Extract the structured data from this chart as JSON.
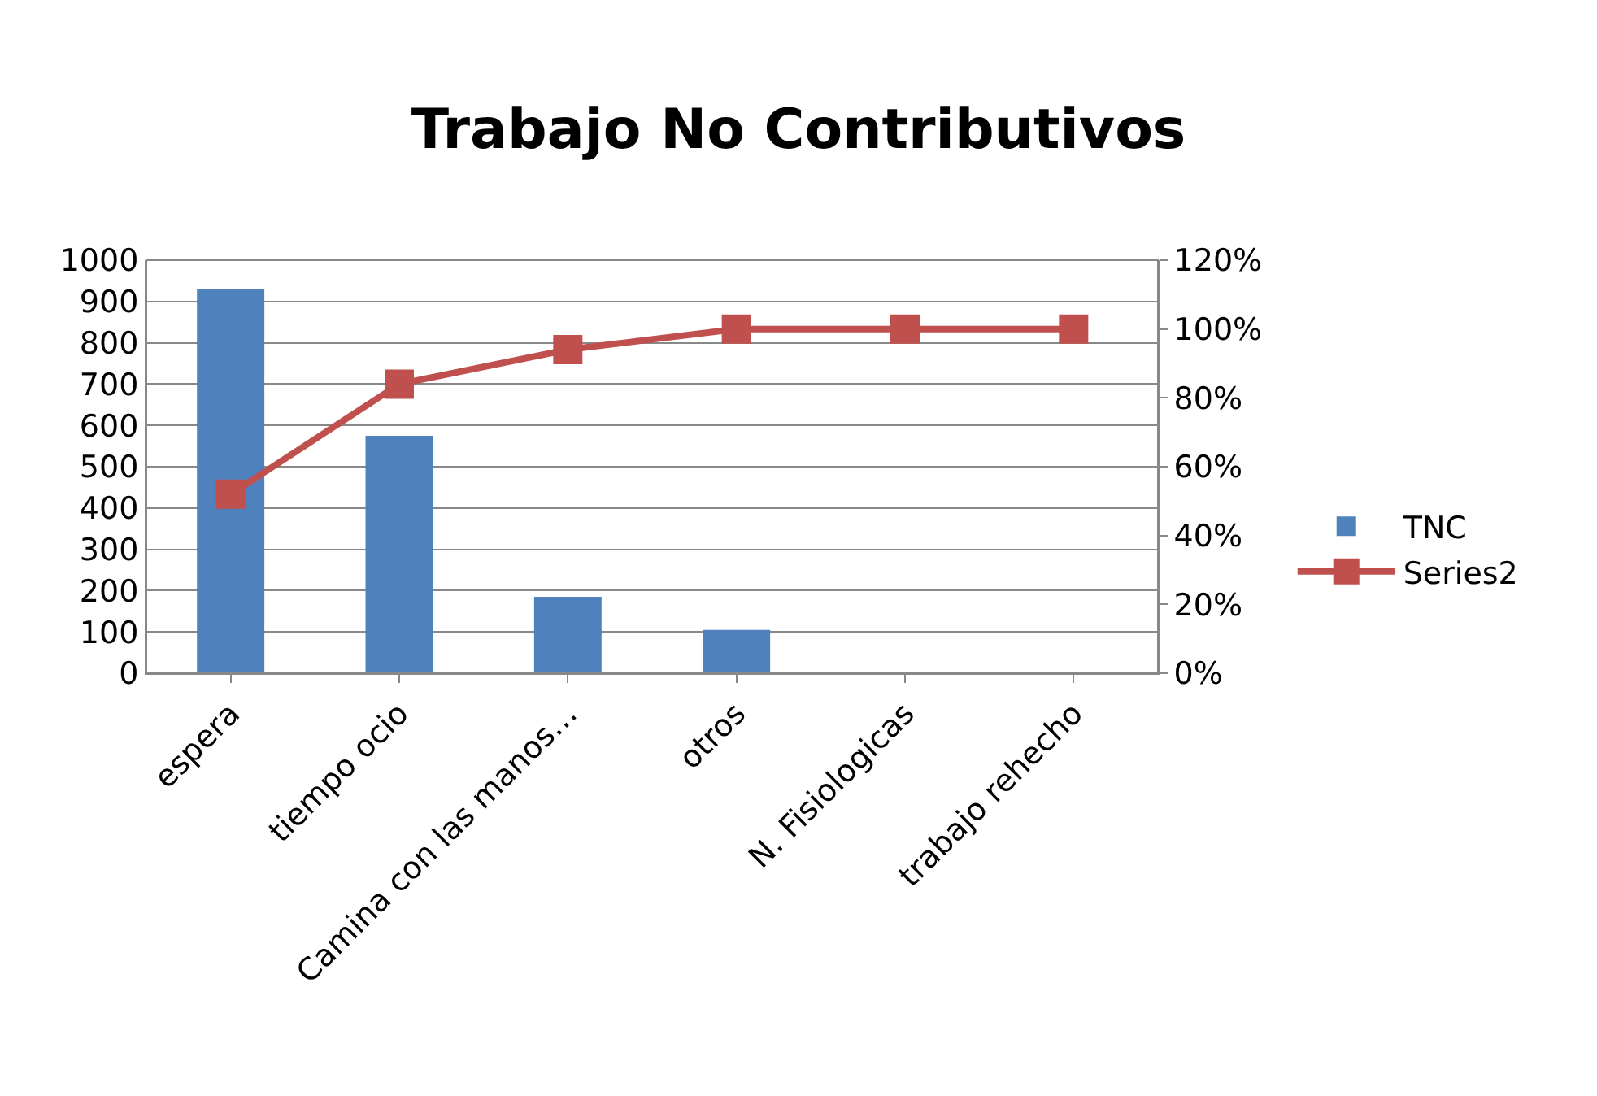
{
  "chart_data": {
    "type": "bar",
    "title": "Trabajo No Contributivos",
    "categories": [
      "espera",
      "tiempo ocio",
      "Camina con las manos…",
      "otros",
      "N. Fisiologicas",
      "trabajo rehecho"
    ],
    "series": [
      {
        "name": "TNC",
        "color": "#4f81bd",
        "values": [
          930,
          575,
          185,
          105,
          0,
          0
        ]
      },
      {
        "name": "Series2",
        "type": "line",
        "axis": "y2",
        "color": "#c0504d",
        "marker": "square",
        "values": [
          52,
          84,
          94,
          100,
          100,
          100
        ]
      }
    ],
    "ylim": [
      0,
      1000
    ],
    "yticks": [
      0,
      100,
      200,
      300,
      400,
      500,
      600,
      700,
      800,
      900,
      1000
    ],
    "y2lim": [
      0,
      120
    ],
    "y2ticks": [
      {
        "value": 0,
        "label": "0%"
      },
      {
        "value": 20,
        "label": "20%"
      },
      {
        "value": 40,
        "label": "40%"
      },
      {
        "value": 60,
        "label": "60%"
      },
      {
        "value": 80,
        "label": "80%"
      },
      {
        "value": 100,
        "label": "100%"
      },
      {
        "value": 120,
        "label": "120%"
      }
    ],
    "grid": "y",
    "legend": "right"
  }
}
